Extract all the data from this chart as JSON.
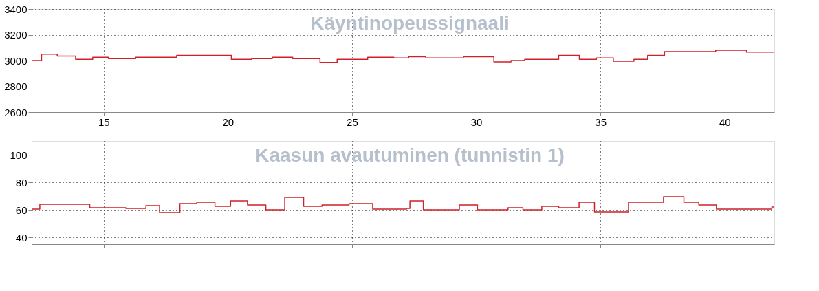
{
  "chart_data": [
    {
      "type": "step",
      "title": "Käyntinopeussignaali",
      "xlim": [
        12.1,
        42
      ],
      "xticks": [
        15,
        20,
        25,
        30,
        35,
        40
      ],
      "ylim": [
        2600,
        3400
      ],
      "yticks": [
        2600,
        2800,
        3000,
        3200,
        3400
      ],
      "grid": true,
      "legend": false,
      "series": [
        {
          "color": "#d0202a",
          "x": [
            12.1,
            12.5,
            13.13,
            13.87,
            14.56,
            15.19,
            16.29,
            17.94,
            20.14,
            20.96,
            21.79,
            22.61,
            23.71,
            24.4,
            25.63,
            26.68,
            27.28,
            27.97,
            29.48,
            30.71,
            31.4,
            31.95,
            33.32,
            34.15,
            34.84,
            35.52,
            36.35,
            36.9,
            37.58,
            39.64,
            40.88,
            42
          ],
          "values": [
            3000,
            3050,
            3035,
            3010,
            3025,
            3015,
            3025,
            3040,
            3010,
            3015,
            3025,
            3015,
            2985,
            3010,
            3025,
            3020,
            3030,
            3020,
            3030,
            2990,
            3000,
            3010,
            3040,
            3010,
            3020,
            2995,
            3010,
            3040,
            3070,
            3080,
            3065,
            3065
          ]
        }
      ]
    },
    {
      "type": "step",
      "title": "Kaasun avautuminen (tunnistin 1)",
      "xlim": [
        12.1,
        42
      ],
      "xticks": [
        15,
        20,
        25,
        30,
        35,
        40
      ],
      "ylim": [
        35,
        110
      ],
      "yticks": [
        40,
        60,
        80,
        100
      ],
      "grid": true,
      "legend": false,
      "tick_labels": "y",
      "series": [
        {
          "color": "#d0202a",
          "x": [
            12.1,
            12.43,
            14.44,
            15.89,
            16.7,
            17.25,
            18.07,
            18.75,
            19.48,
            20.11,
            20.79,
            21.53,
            22.29,
            23.05,
            23.79,
            24.88,
            25.83,
            27.19,
            27.33,
            27.87,
            29.32,
            30.05,
            31.28,
            31.88,
            32.64,
            33.32,
            34.14,
            34.76,
            36.13,
            37.54,
            38.36,
            38.96,
            39.67,
            41.9,
            42
          ],
          "values": [
            60.5,
            64,
            61.5,
            61,
            63,
            58,
            64.5,
            65.5,
            62.5,
            66.5,
            63.5,
            60,
            69,
            62.5,
            63.5,
            64.5,
            60.5,
            61,
            66.5,
            60,
            63.5,
            60,
            61.5,
            60,
            62.5,
            61.5,
            65.5,
            58.5,
            65.5,
            69.5,
            65.5,
            63.5,
            60.5,
            62,
            62
          ]
        }
      ]
    }
  ]
}
